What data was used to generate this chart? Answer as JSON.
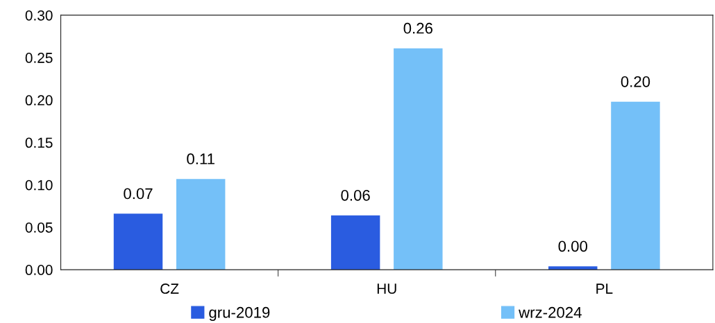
{
  "chart_data": {
    "type": "bar",
    "categories": [
      "CZ",
      "HU",
      "PL"
    ],
    "series": [
      {
        "name": "gru-2019",
        "color": "#2a5ce0",
        "values": [
          0.066,
          0.064,
          0.004
        ],
        "value_labels": [
          "0.07",
          "0.06",
          "0.00"
        ]
      },
      {
        "name": "wrz-2024",
        "color": "#74c0f8",
        "values": [
          0.107,
          0.261,
          0.198
        ],
        "value_labels": [
          "0.11",
          "0.26",
          "0.20"
        ]
      }
    ],
    "ylim": [
      0,
      0.3
    ],
    "yticks": [
      {
        "value": 0,
        "label": "0.00"
      },
      {
        "value": 0.05,
        "label": "0.05"
      },
      {
        "value": 0.1,
        "label": "0.10"
      },
      {
        "value": 0.15,
        "label": "0.15"
      },
      {
        "value": 0.2,
        "label": "0.20"
      },
      {
        "value": 0.25,
        "label": "0.25"
      },
      {
        "value": 0.3,
        "label": "0.30"
      }
    ],
    "grid": false,
    "legend": "bottom"
  }
}
